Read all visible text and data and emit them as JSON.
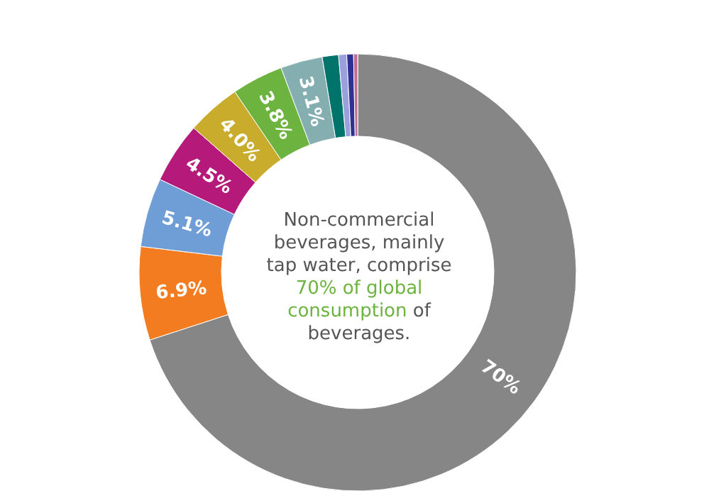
{
  "chart_data": {
    "type": "donut",
    "categories": [
      null,
      null,
      null,
      null,
      null,
      null,
      null,
      null,
      null,
      null,
      null
    ],
    "values": [
      70,
      6.9,
      5.1,
      4.5,
      4.0,
      3.8,
      3.1,
      1.2,
      0.6,
      0.5,
      0.3
    ],
    "value_labels": [
      "70%",
      "6.9%",
      "5.1%",
      "4.5%",
      "4.0%",
      "3.8%",
      "3.1%",
      null,
      null,
      null,
      null
    ],
    "colors": [
      "#868686",
      "#f47c20",
      "#6f9ed6",
      "#b5197a",
      "#c9ac2c",
      "#6cb33f",
      "#85aeb1",
      "#00746b",
      "#9b9fdc",
      "#2e3192",
      "#c06c94"
    ],
    "annotations": [
      "Non-commercial beverages, mainly tap water, comprise ",
      "70% of global consumption",
      " of beverages."
    ]
  }
}
